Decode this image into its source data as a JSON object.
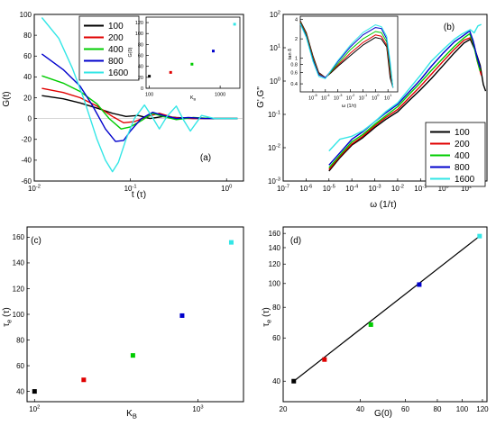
{
  "colors": {
    "100": "#000000",
    "200": "#e00000",
    "400": "#00cc00",
    "800": "#0000cc",
    "1600": "#33e6e6",
    "fit_line": "#000000"
  },
  "chart_data": [
    {
      "id": "a",
      "type": "line",
      "panel_label": "(a)",
      "xlabel": "t (τ)",
      "ylabel": "G(t)",
      "xscale": "log",
      "xlim": [
        0.01,
        1.5
      ],
      "ylim": [
        -60,
        100
      ],
      "xticks": [
        {
          "v": 0.01,
          "label": "10",
          "sup": "-2"
        },
        {
          "v": 0.1,
          "label": "10",
          "sup": "-1"
        },
        {
          "v": 1,
          "label": "10",
          "sup": "0"
        }
      ],
      "yticks": [
        -60,
        -40,
        -20,
        0,
        20,
        40,
        60,
        80,
        100
      ],
      "legend": {
        "position": "top-left",
        "entries": [
          "100",
          "200",
          "400",
          "800",
          "1600"
        ]
      },
      "series": [
        {
          "name": "100",
          "color_key": "100",
          "x": [
            0.012,
            0.02,
            0.03,
            0.045,
            0.065,
            0.09,
            0.12,
            0.16,
            0.22,
            0.3,
            0.45,
            0.7,
            1.0,
            1.3
          ],
          "y": [
            22,
            19,
            15,
            10,
            5,
            2,
            3,
            0,
            2,
            1,
            0,
            0,
            0,
            0
          ]
        },
        {
          "name": "200",
          "color_key": "200",
          "x": [
            0.012,
            0.02,
            0.03,
            0.045,
            0.065,
            0.085,
            0.11,
            0.15,
            0.2,
            0.28,
            0.4,
            0.6,
            1.0,
            1.3
          ],
          "y": [
            29,
            25,
            20,
            12,
            2,
            -4,
            -3,
            2,
            5,
            1,
            0,
            0,
            0,
            0
          ]
        },
        {
          "name": "400",
          "color_key": "400",
          "x": [
            0.012,
            0.02,
            0.03,
            0.045,
            0.06,
            0.08,
            0.1,
            0.13,
            0.17,
            0.22,
            0.3,
            0.45,
            0.7,
            1.0,
            1.3
          ],
          "y": [
            41,
            34,
            26,
            14,
            0,
            -10,
            -8,
            -2,
            5,
            2,
            -1,
            1,
            0,
            0,
            0
          ]
        },
        {
          "name": "800",
          "color_key": "800",
          "x": [
            0.012,
            0.02,
            0.03,
            0.04,
            0.055,
            0.07,
            0.085,
            0.1,
            0.13,
            0.17,
            0.22,
            0.3,
            0.4,
            0.6,
            1.0,
            1.3
          ],
          "y": [
            62,
            47,
            31,
            13,
            -10,
            -22,
            -21,
            -12,
            0,
            6,
            3,
            0,
            1,
            0,
            0,
            0
          ]
        },
        {
          "name": "1600",
          "color_key": "1600",
          "x": [
            0.012,
            0.018,
            0.025,
            0.033,
            0.045,
            0.055,
            0.065,
            0.075,
            0.09,
            0.11,
            0.14,
            0.17,
            0.2,
            0.24,
            0.3,
            0.36,
            0.42,
            0.55,
            0.75,
            1.0,
            1.3
          ],
          "y": [
            97,
            77,
            48,
            18,
            -20,
            -40,
            -51,
            -42,
            -20,
            0,
            13,
            1,
            -10,
            2,
            12,
            -2,
            -12,
            3,
            0,
            0,
            0
          ]
        }
      ],
      "inset": {
        "type": "scatter",
        "xlabel": "K",
        "xlabel_sub": "B",
        "ylabel": "G(0)",
        "xscale": "log",
        "xlim": [
          90,
          1900
        ],
        "ylim": [
          0,
          130
        ],
        "xticks": [
          {
            "v": 100,
            "label": "100"
          },
          {
            "v": 1000,
            "label": "1000"
          }
        ],
        "yticks": [
          0,
          20,
          40,
          60,
          80,
          100,
          120
        ],
        "points": [
          {
            "x": 100,
            "y": 22,
            "color_key": "100"
          },
          {
            "x": 200,
            "y": 29,
            "color_key": "200"
          },
          {
            "x": 400,
            "y": 44,
            "color_key": "400"
          },
          {
            "x": 800,
            "y": 68,
            "color_key": "800"
          },
          {
            "x": 1600,
            "y": 117,
            "color_key": "1600"
          }
        ]
      }
    },
    {
      "id": "b",
      "type": "line",
      "panel_label": "(b)",
      "xlabel": "ω (1/τ)",
      "ylabel": "G',G\"",
      "xscale": "log",
      "yscale": "log",
      "xlim": [
        1e-07,
        80
      ],
      "ylim": [
        0.001,
        100
      ],
      "xticks": [
        {
          "v": 1e-07,
          "label": "10",
          "sup": "-7"
        },
        {
          "v": 1e-06,
          "label": "10",
          "sup": "-6"
        },
        {
          "v": 1e-05,
          "label": "10",
          "sup": "-5"
        },
        {
          "v": 0.0001,
          "label": "10",
          "sup": "-4"
        },
        {
          "v": 0.001,
          "label": "10",
          "sup": "-3"
        },
        {
          "v": 0.01,
          "label": "10",
          "sup": "-2"
        },
        {
          "v": 0.1,
          "label": "10",
          "sup": "-1"
        },
        {
          "v": 1,
          "label": "10",
          "sup": "0"
        },
        {
          "v": 10,
          "label": "10",
          "sup": "1"
        }
      ],
      "yticks": [
        {
          "v": 0.001,
          "label": "10",
          "sup": "-3"
        },
        {
          "v": 0.01,
          "label": "10",
          "sup": "-2"
        },
        {
          "v": 0.1,
          "label": "10",
          "sup": "-1"
        },
        {
          "v": 1,
          "label": "10",
          "sup": "0"
        },
        {
          "v": 10,
          "label": "10",
          "sup": "1"
        },
        {
          "v": 100,
          "label": "10",
          "sup": "2"
        }
      ],
      "legend": {
        "position": "bottom-right",
        "entries": [
          "100",
          "200",
          "400",
          "800",
          "1600"
        ]
      },
      "series": [
        {
          "name": "100",
          "color_key": "100",
          "x": [
            1e-05,
            3e-05,
            0.0001,
            0.0003,
            0.001,
            0.003,
            0.01,
            0.03,
            0.1,
            0.3,
            1,
            3,
            8,
            15,
            25,
            40,
            55,
            70
          ],
          "y": [
            0.002,
            0.005,
            0.012,
            0.02,
            0.04,
            0.07,
            0.12,
            0.25,
            0.55,
            1.2,
            3,
            7,
            14,
            18,
            8,
            3,
            0.8,
            0.5
          ]
        },
        {
          "name": "200",
          "color_key": "200",
          "x": [
            1e-05,
            3e-05,
            0.0001,
            0.0003,
            0.001,
            0.003,
            0.01,
            0.03,
            0.1,
            0.3,
            1,
            3,
            8,
            15,
            22,
            30,
            45
          ],
          "y": [
            0.0022,
            0.0055,
            0.013,
            0.022,
            0.045,
            0.08,
            0.14,
            0.3,
            0.7,
            1.6,
            4,
            9,
            17,
            20,
            12,
            4,
            1.5
          ]
        },
        {
          "name": "400",
          "color_key": "400",
          "x": [
            1e-05,
            3e-05,
            0.0001,
            0.0003,
            0.001,
            0.003,
            0.01,
            0.03,
            0.1,
            0.3,
            1,
            3,
            8,
            14,
            20,
            28,
            40
          ],
          "y": [
            0.0025,
            0.006,
            0.015,
            0.025,
            0.05,
            0.09,
            0.17,
            0.38,
            0.9,
            2.1,
            5,
            11,
            20,
            26,
            14,
            5,
            2
          ]
        },
        {
          "name": "800",
          "color_key": "800",
          "x": [
            1e-05,
            3e-05,
            0.0001,
            0.0003,
            0.001,
            0.003,
            0.01,
            0.03,
            0.1,
            0.3,
            1,
            3,
            8,
            14,
            20,
            28,
            40
          ],
          "y": [
            0.003,
            0.007,
            0.018,
            0.03,
            0.06,
            0.11,
            0.2,
            0.45,
            1.1,
            2.8,
            7,
            15,
            24,
            32,
            16,
            6,
            2.5
          ]
        },
        {
          "name": "1600",
          "color_key": "1600",
          "x": [
            1e-05,
            3e-05,
            0.0001,
            0.0003,
            0.001,
            0.003,
            0.01,
            0.03,
            0.1,
            0.3,
            1,
            3,
            6,
            10,
            15,
            22,
            32,
            45
          ],
          "y": [
            0.008,
            0.018,
            0.022,
            0.032,
            0.06,
            0.12,
            0.22,
            0.55,
            1.5,
            4,
            9,
            18,
            25,
            30,
            35,
            28,
            45,
            50
          ]
        }
      ],
      "inset": {
        "type": "line",
        "xlabel": "ω (1/τ)",
        "ylabel": "tan δ",
        "xscale": "log",
        "yscale": "log",
        "xlim": [
          1e-06,
          60
        ],
        "ylim": [
          0.3,
          4.5
        ],
        "xticks": [
          {
            "v": 1e-05,
            "label": "10",
            "sup": "-5"
          },
          {
            "v": 0.0001,
            "label": "10",
            "sup": "-4"
          },
          {
            "v": 0.001,
            "label": "10",
            "sup": "-3"
          },
          {
            "v": 0.01,
            "label": "10",
            "sup": "-2"
          },
          {
            "v": 0.1,
            "label": "10",
            "sup": "-1"
          },
          {
            "v": 1,
            "label": "10",
            "sup": "0"
          },
          {
            "v": 10,
            "label": "10",
            "sup": "1"
          }
        ],
        "yticks": [
          {
            "v": 0.4,
            "label": "0.4"
          },
          {
            "v": 0.6,
            "label": "0.6"
          },
          {
            "v": 0.8,
            "label": "0.8"
          },
          {
            "v": 1,
            "label": "1"
          },
          {
            "v": 2,
            "label": "2"
          },
          {
            "v": 4,
            "label": "4"
          }
        ],
        "series": [
          {
            "name": "100",
            "color_key": "100",
            "x": [
              1e-06,
              3e-06,
              1e-05,
              3e-05,
              0.0001,
              0.0003,
              0.001,
              0.01,
              0.1,
              1,
              3,
              8,
              15,
              25
            ],
            "y": [
              3.8,
              2.5,
              1.1,
              0.6,
              0.5,
              0.6,
              0.75,
              1.1,
              1.6,
              2.1,
              2.0,
              1.5,
              0.5,
              0.35
            ]
          },
          {
            "name": "200",
            "color_key": "200",
            "x": [
              1e-06,
              3e-06,
              1e-05,
              3e-05,
              0.0001,
              0.0003,
              0.001,
              0.01,
              0.1,
              1,
              3,
              8,
              15,
              25
            ],
            "y": [
              3.7,
              2.4,
              1.05,
              0.58,
              0.5,
              0.62,
              0.78,
              1.2,
              1.75,
              2.3,
              2.2,
              1.6,
              0.6,
              0.35
            ]
          },
          {
            "name": "400",
            "color_key": "400",
            "x": [
              1e-06,
              3e-06,
              1e-05,
              3e-05,
              0.0001,
              0.0003,
              0.001,
              0.01,
              0.1,
              1,
              3,
              8,
              15,
              25
            ],
            "y": [
              3.6,
              2.3,
              1.0,
              0.56,
              0.5,
              0.63,
              0.82,
              1.35,
              2.0,
              2.6,
              2.5,
              1.8,
              0.7,
              0.35
            ]
          },
          {
            "name": "800",
            "color_key": "800",
            "x": [
              1e-06,
              3e-06,
              1e-05,
              3e-05,
              0.0001,
              0.0003,
              0.001,
              0.01,
              0.1,
              1,
              3,
              8,
              15,
              25
            ],
            "y": [
              3.5,
              2.2,
              0.95,
              0.55,
              0.5,
              0.65,
              0.88,
              1.5,
              2.3,
              3.0,
              2.9,
              2.0,
              0.8,
              0.35
            ]
          },
          {
            "name": "1600",
            "color_key": "1600",
            "x": [
              1e-06,
              3e-06,
              1e-05,
              3e-05,
              0.0001,
              0.0003,
              0.001,
              0.01,
              0.1,
              1,
              3,
              8,
              15,
              25
            ],
            "y": [
              3.4,
              2.1,
              0.9,
              0.52,
              0.48,
              0.66,
              0.92,
              1.6,
              2.5,
              3.3,
              3.1,
              2.2,
              0.9,
              0.35
            ]
          }
        ]
      }
    },
    {
      "id": "c",
      "type": "scatter",
      "panel_label": "(c)",
      "xlabel": "K",
      "xlabel_sub": "B",
      "ylabel": "τ",
      "ylabel_sub": "e",
      "ylabel_suffix": " (τ)",
      "xscale": "log",
      "xlim": [
        90,
        1900
      ],
      "ylim": [
        32,
        168
      ],
      "xticks": [
        {
          "v": 100,
          "label": "10",
          "sup": "2"
        },
        {
          "v": 1000,
          "label": "10",
          "sup": "3"
        }
      ],
      "yticks": [
        40,
        60,
        80,
        100,
        120,
        140,
        160
      ],
      "points": [
        {
          "x": 100,
          "y": 40,
          "color_key": "100"
        },
        {
          "x": 200,
          "y": 49,
          "color_key": "200"
        },
        {
          "x": 400,
          "y": 68,
          "color_key": "400"
        },
        {
          "x": 800,
          "y": 99,
          "color_key": "800"
        },
        {
          "x": 1600,
          "y": 156,
          "color_key": "1600"
        }
      ]
    },
    {
      "id": "d",
      "type": "scatter",
      "panel_label": "(d)",
      "xlabel": "G(0)",
      "ylabel": "τ",
      "ylabel_sub": "e",
      "ylabel_suffix": " (τ)",
      "xscale": "log",
      "yscale": "log",
      "xlim": [
        20,
        125
      ],
      "ylim": [
        33,
        170
      ],
      "xticks": [
        {
          "v": 20,
          "label": "20"
        },
        {
          "v": 40,
          "label": "40"
        },
        {
          "v": 60,
          "label": "60"
        },
        {
          "v": 80,
          "label": "80"
        },
        {
          "v": 100,
          "label": "100"
        },
        {
          "v": 120,
          "label": "120"
        }
      ],
      "yticks": [
        {
          "v": 40,
          "label": "40"
        },
        {
          "v": 60,
          "label": "60"
        },
        {
          "v": 80,
          "label": "80"
        },
        {
          "v": 100,
          "label": "100"
        },
        {
          "v": 120,
          "label": "120"
        },
        {
          "v": 140,
          "label": "140"
        },
        {
          "v": 160,
          "label": "160"
        }
      ],
      "points": [
        {
          "x": 22,
          "y": 40,
          "color_key": "100"
        },
        {
          "x": 29,
          "y": 49,
          "color_key": "200"
        },
        {
          "x": 44,
          "y": 68,
          "color_key": "400"
        },
        {
          "x": 68,
          "y": 99,
          "color_key": "800"
        },
        {
          "x": 117,
          "y": 156,
          "color_key": "1600"
        }
      ],
      "fit_line": {
        "x": [
          22,
          117
        ],
        "y": [
          40,
          156
        ]
      }
    }
  ]
}
